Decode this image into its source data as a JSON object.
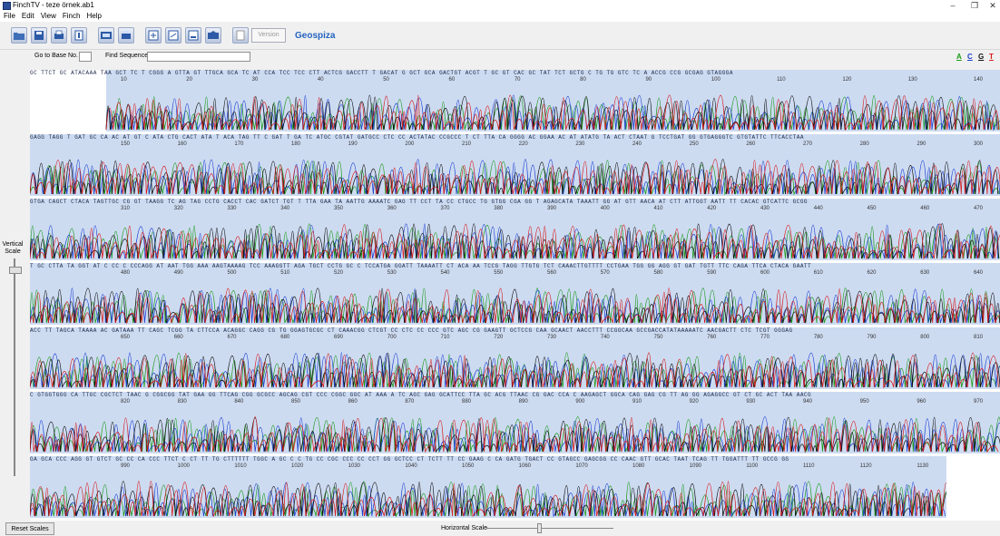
{
  "window": {
    "title": "FinchTV - teze örnek.ab1",
    "controls": [
      "–",
      "❐",
      "✕"
    ]
  },
  "menu": [
    "File",
    "Edit",
    "View",
    "Finch",
    "Help"
  ],
  "toolbar": {
    "version_label": "Version",
    "brand": "Geospiza"
  },
  "search": {
    "goto_label": "Go to Base No.",
    "goto_value": "",
    "find_label": "Find Sequence",
    "find_value": ""
  },
  "base_filters": [
    "A",
    "C",
    "G",
    "T"
  ],
  "base_colors": {
    "A": "#1a9a1a",
    "C": "#1b3fd1",
    "G": "#111111",
    "T": "#d61b1b"
  },
  "rows": [
    {
      "sequence": "GC TTCT GC ATACAAA TAA GCT TC T CGGG A GTTA GT TTGCA GCA TC AT CCA TCC TCC CTT ACTCG GACCTT T GACAT G GCT GCA GACTGT ACGT T GC GT CAC GC TAT TCT GCTG C TG TG GTC TC A ACCG CCG GCGAG GTAGGGA",
      "ticks": [
        "10",
        "20",
        "30",
        "40",
        "50",
        "60",
        "70",
        "80",
        "90",
        "100",
        "110",
        "120",
        "130",
        "140"
      ]
    },
    {
      "sequence": "GAGG TAGG T GAT GC CA AC AT GT C ATA CTG CACT ATA T ACA TAG TT C GAT T GA TC ATGC CGTAT GATGCC CTC CC ACTATAC CCGCCC T CT TTA CA GGGG AC GGAA AC AT ATATG TA ACT CTAAT G TCCTGAT GG GTGAGGGTC GTGTATTC TTCACCTAA",
      "ticks": [
        "150",
        "160",
        "170",
        "180",
        "190",
        "200",
        "210",
        "220",
        "230",
        "240",
        "250",
        "260",
        "270",
        "280",
        "290",
        "300"
      ]
    },
    {
      "sequence": "GTGA CAGCT CTACA TAGTTGC CG GT TAAGG TC AG TAG CCTG CACCT CAC GATCT TGT T TTA GAA TA AATTG AAAATC GAG TT CCT TA CC CTGCC TG GTGG CGA GG T AGAGCATA TAAATT GG AT GTT AACA AT CTT ATTGGT AATT TT CACAC GTCATTC GCGG",
      "ticks": [
        "310",
        "320",
        "330",
        "340",
        "350",
        "360",
        "370",
        "380",
        "390",
        "400",
        "410",
        "420",
        "430",
        "440",
        "450",
        "460",
        "470"
      ]
    },
    {
      "sequence": "T GC CTTA TA GGT AT C CC C CCCAGG AT AAT TGG AAA AAGTAAAAG TCC AAAGGTT AGA TGCT CCTG GC C TCCATGA GGATT TAAAATT CT ACA AA TCCG TAGG TTGTG TCT CAAACTTGTTTT CCTGAA TGG GG AGG GT GAT TGTT TTC CAGA TTCA CTACA GAATT",
      "ticks": [
        "480",
        "490",
        "500",
        "510",
        "520",
        "530",
        "540",
        "550",
        "560",
        "570",
        "580",
        "590",
        "600",
        "610",
        "620",
        "630",
        "640"
      ]
    },
    {
      "sequence": "ACC TT TAGCA TAAAA AC GATAAA TT CAGC TCGG TA CTTCCA ACAGGC CAGG CG TG GGAGTGCGC CT CAAACGG CTCGT CC CTC CC CCC GTC AGC CG GAAGTT GCTCCG CAA GCAACT AACCTTT CCGGCAA GCCGACCATATAAAAATC AACGACTT CTC TCGT GGGAG",
      "ticks": [
        "650",
        "660",
        "670",
        "680",
        "690",
        "700",
        "710",
        "720",
        "730",
        "740",
        "750",
        "760",
        "770",
        "780",
        "790",
        "800",
        "810"
      ]
    },
    {
      "sequence": "C GTGGTGGG CA TTGC CGCTCT TAAC G CGGCGG TAT GAA GG TTCAG CGG GCGCC AGCAG CGT CCC CGGC GGC AT AAA A TC AGC GAG GCATTCC TTA GC ACG TTAAC CG GAC CCA C AAGAGCT GGCA CAG GAG CG TT AG GG AGAGGCC GT CT GC ACT TAA AACG",
      "ticks": [
        "820",
        "830",
        "840",
        "850",
        "860",
        "870",
        "880",
        "890",
        "900",
        "910",
        "920",
        "930",
        "940",
        "950",
        "960",
        "970"
      ]
    },
    {
      "sequence": "GA GCA CCC AGG GT GTCT GC CC CA CCC TTCT C CT TT TG CTTTTTT TGGC A GC C C TG CC CGC CCC CC CCT GG GCTCC CT TCTT TT CC GAAG C CA GATG TGACT CC GTAGCC GAGCGG CC CAAC GTT GCAC TAAT TCAG TT TGGATTT TT GCCG GG",
      "ticks": [
        "990",
        "1000",
        "1010",
        "1020",
        "1030",
        "1040",
        "1050",
        "1060",
        "1070",
        "1080",
        "1090",
        "1100",
        "1110",
        "1120",
        "1130",
        "1140"
      ]
    }
  ],
  "vertical_scale_label": "Vertical Scale",
  "reset_button": "Reset Scales",
  "horizontal_scale_label": "Horizontal Scale"
}
